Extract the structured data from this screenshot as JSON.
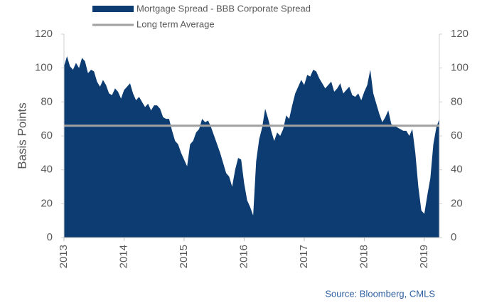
{
  "chart_data": {
    "type": "area",
    "ylabel": "Basis Points",
    "source": "Source: Bloomberg, CMLS",
    "x": [
      2013.0,
      2013.05,
      2013.1,
      2013.15,
      2013.2,
      2013.25,
      2013.3,
      2013.35,
      2013.4,
      2013.45,
      2013.5,
      2013.55,
      2013.6,
      2013.65,
      2013.7,
      2013.75,
      2013.8,
      2013.85,
      2013.9,
      2013.95,
      2014.0,
      2014.05,
      2014.1,
      2014.15,
      2014.2,
      2014.25,
      2014.3,
      2014.35,
      2014.4,
      2014.45,
      2014.5,
      2014.55,
      2014.6,
      2014.65,
      2014.7,
      2014.75,
      2014.8,
      2014.85,
      2014.9,
      2014.95,
      2015.0,
      2015.05,
      2015.1,
      2015.15,
      2015.2,
      2015.25,
      2015.3,
      2015.35,
      2015.4,
      2015.45,
      2015.5,
      2015.55,
      2015.6,
      2015.65,
      2015.7,
      2015.75,
      2015.8,
      2015.85,
      2015.9,
      2015.95,
      2016.0,
      2016.05,
      2016.1,
      2016.15,
      2016.2,
      2016.25,
      2016.3,
      2016.35,
      2016.4,
      2016.45,
      2016.5,
      2016.55,
      2016.6,
      2016.65,
      2016.7,
      2016.75,
      2016.8,
      2016.85,
      2016.9,
      2016.95,
      2017.0,
      2017.05,
      2017.1,
      2017.15,
      2017.2,
      2017.25,
      2017.3,
      2017.35,
      2017.4,
      2017.45,
      2017.5,
      2017.55,
      2017.6,
      2017.65,
      2017.7,
      2017.75,
      2017.8,
      2017.85,
      2017.9,
      2017.95,
      2018.0,
      2018.05,
      2018.1,
      2018.15,
      2018.2,
      2018.25,
      2018.3,
      2018.35,
      2018.4,
      2018.45,
      2018.5,
      2018.55,
      2018.6,
      2018.65,
      2018.7,
      2018.75,
      2018.8,
      2018.85,
      2018.9,
      2018.95,
      2019.0,
      2019.05,
      2019.1,
      2019.15,
      2019.2,
      2019.25
    ],
    "series": [
      {
        "name": "Mortgage Spread - BBB Corporate Spread",
        "color": "#0c3c72",
        "values": [
          101,
          107,
          101,
          99,
          103,
          100,
          106,
          104,
          97,
          99,
          98,
          92,
          89,
          93,
          90,
          85,
          84,
          88,
          86,
          82,
          87,
          89,
          91,
          85,
          81,
          83,
          80,
          77,
          79,
          75,
          78,
          78,
          76,
          71,
          70,
          70,
          63,
          57,
          55,
          50,
          46,
          42,
          55,
          57,
          62,
          64,
          70,
          68,
          69,
          65,
          60,
          55,
          50,
          44,
          38,
          36,
          30,
          40,
          47,
          46,
          32,
          22,
          18,
          13,
          45,
          58,
          65,
          76,
          70,
          63,
          57,
          62,
          60,
          64,
          72,
          70,
          78,
          85,
          89,
          93,
          90,
          96,
          95,
          99,
          98,
          94,
          91,
          88,
          90,
          92,
          86,
          88,
          91,
          85,
          87,
          89,
          84,
          83,
          85,
          81,
          86,
          90,
          99,
          85,
          79,
          73,
          68,
          71,
          75,
          67,
          66,
          65,
          64,
          63,
          63,
          60,
          64,
          50,
          30,
          16,
          14,
          25,
          35,
          55,
          65,
          70
        ]
      }
    ],
    "average": {
      "name": "Long term Average",
      "color": "#a0a0a0",
      "value": 66
    },
    "xlim": [
      2013,
      2019.25
    ],
    "xticks": [
      2013,
      2014,
      2015,
      2016,
      2017,
      2018,
      2019
    ],
    "ylim": [
      0,
      120
    ],
    "yticks": [
      0,
      20,
      40,
      60,
      80,
      100,
      120
    ],
    "y2lim": [
      0,
      120
    ],
    "y2ticks": [
      0,
      20,
      40,
      60,
      80,
      100,
      120
    ]
  }
}
